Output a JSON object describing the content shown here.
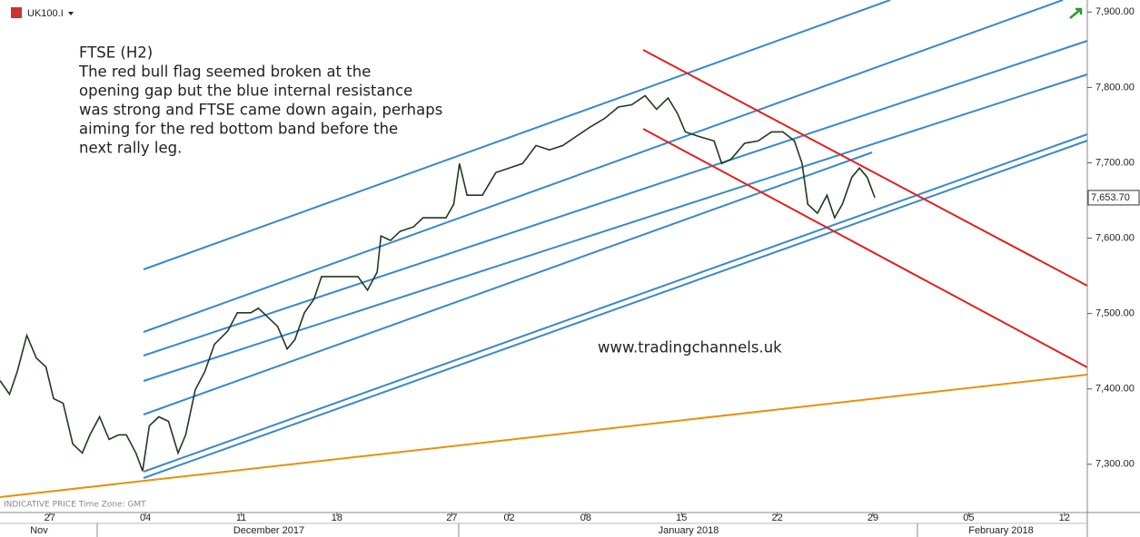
{
  "chart_data": {
    "type": "line",
    "symbol": "UK100.I",
    "annotation": [
      "FTSE (H2)",
      "The red bull flag seemed broken at the",
      "opening gap but the blue internal resistance",
      "was strong and FTSE came down again, perhaps",
      "aiming for the red bottom band before the",
      "next rally leg."
    ],
    "watermark": "www.tradingchannels.uk",
    "footer": "INDICATIVE PRICE   Time Zone: GMT",
    "last_price": {
      "value": 7653.7,
      "label": "7,653.70"
    },
    "x": [
      -2.6,
      -2.1,
      -1.7,
      -1.2,
      -0.7,
      -0.2,
      0.2,
      0.7,
      1.2,
      1.7,
      2.1,
      2.6,
      3.1,
      3.6,
      4.0,
      4.5,
      4.85,
      5.2,
      5.7,
      6.2,
      6.7,
      7.1,
      7.6,
      8.1,
      8.6,
      9.3,
      9.8,
      10.5,
      10.9,
      11.4,
      11.9,
      12.4,
      12.8,
      13.3,
      13.8,
      14.2,
      14.7,
      15.2,
      15.7,
      16.1,
      16.6,
      17.1,
      17.3,
      17.8,
      18.3,
      19.0,
      19.5,
      19.9,
      20.7,
      21.1,
      21.4,
      21.8,
      22.6,
      23.3,
      24.0,
      24.7,
      25.4,
      26.1,
      26.8,
      27.5,
      28.2,
      29.0,
      29.7,
      30.4,
      31.1,
      31.7,
      32.3,
      32.8,
      33.2,
      33.9,
      34.7,
      35.1,
      35.6,
      36.3,
      37.0,
      37.7,
      38.3,
      38.9,
      39.3,
      39.6,
      40.1,
      40.6,
      41.0,
      41.4,
      41.9,
      42.3,
      42.7,
      43.1
    ],
    "series": [
      {
        "color": "#1e3a1e",
        "values": [
          7411,
          7393,
          7423,
          7471,
          7441,
          7429,
          7387,
          7381,
          7327,
          7315,
          7339,
          7363,
          7333,
          7339,
          7339,
          7315,
          7291,
          7351,
          7363,
          7357,
          7315,
          7339,
          7399,
          7423,
          7459,
          7477,
          7501,
          7501,
          7507,
          7495,
          7483,
          7453,
          7465,
          7501,
          7519,
          7549,
          7549,
          7549,
          7549,
          7549,
          7531,
          7555,
          7603,
          7597,
          7609,
          7615,
          7627,
          7627,
          7627,
          7645,
          7699,
          7657,
          7657,
          7687,
          7693,
          7699,
          7723,
          7717,
          7723,
          7735,
          7747,
          7759,
          7774,
          7777,
          7789,
          7771,
          7786,
          7765,
          7741,
          7735,
          7729,
          7699,
          7705,
          7726,
          7729,
          7741,
          7741,
          7729,
          7699,
          7645,
          7633,
          7657,
          7627,
          7645,
          7681,
          7693,
          7681,
          7653.7
        ]
      }
    ],
    "xlim": [
      -2.6,
      54.2
    ],
    "xticks": [
      {
        "value": 0,
        "label": "27"
      },
      {
        "value": 5,
        "label": "04"
      },
      {
        "value": 10,
        "label": "11"
      },
      {
        "value": 15,
        "label": "18"
      },
      {
        "value": 21,
        "label": "27"
      },
      {
        "value": 24,
        "label": "02"
      },
      {
        "value": 28,
        "label": "08"
      },
      {
        "value": 33,
        "label": "15"
      },
      {
        "value": 38,
        "label": "22"
      },
      {
        "value": 43,
        "label": "29"
      },
      {
        "value": 48,
        "label": "05"
      },
      {
        "value": 53,
        "label": "12"
      }
    ],
    "months": [
      "Nov",
      "December 2017",
      "January 2018",
      "February 2018"
    ],
    "ylim": [
      7236,
      7916
    ],
    "yticks": [
      {
        "value": 7300,
        "label": "7,300.00"
      },
      {
        "value": 7400,
        "label": "7,400.00"
      },
      {
        "value": 7500,
        "label": "7,500.00"
      },
      {
        "value": 7600,
        "label": "7,600.00"
      },
      {
        "value": 7700,
        "label": "7,700.00"
      },
      {
        "value": 7800,
        "label": "7,800.00"
      },
      {
        "value": 7900,
        "label": "7,900.00"
      }
    ]
  }
}
